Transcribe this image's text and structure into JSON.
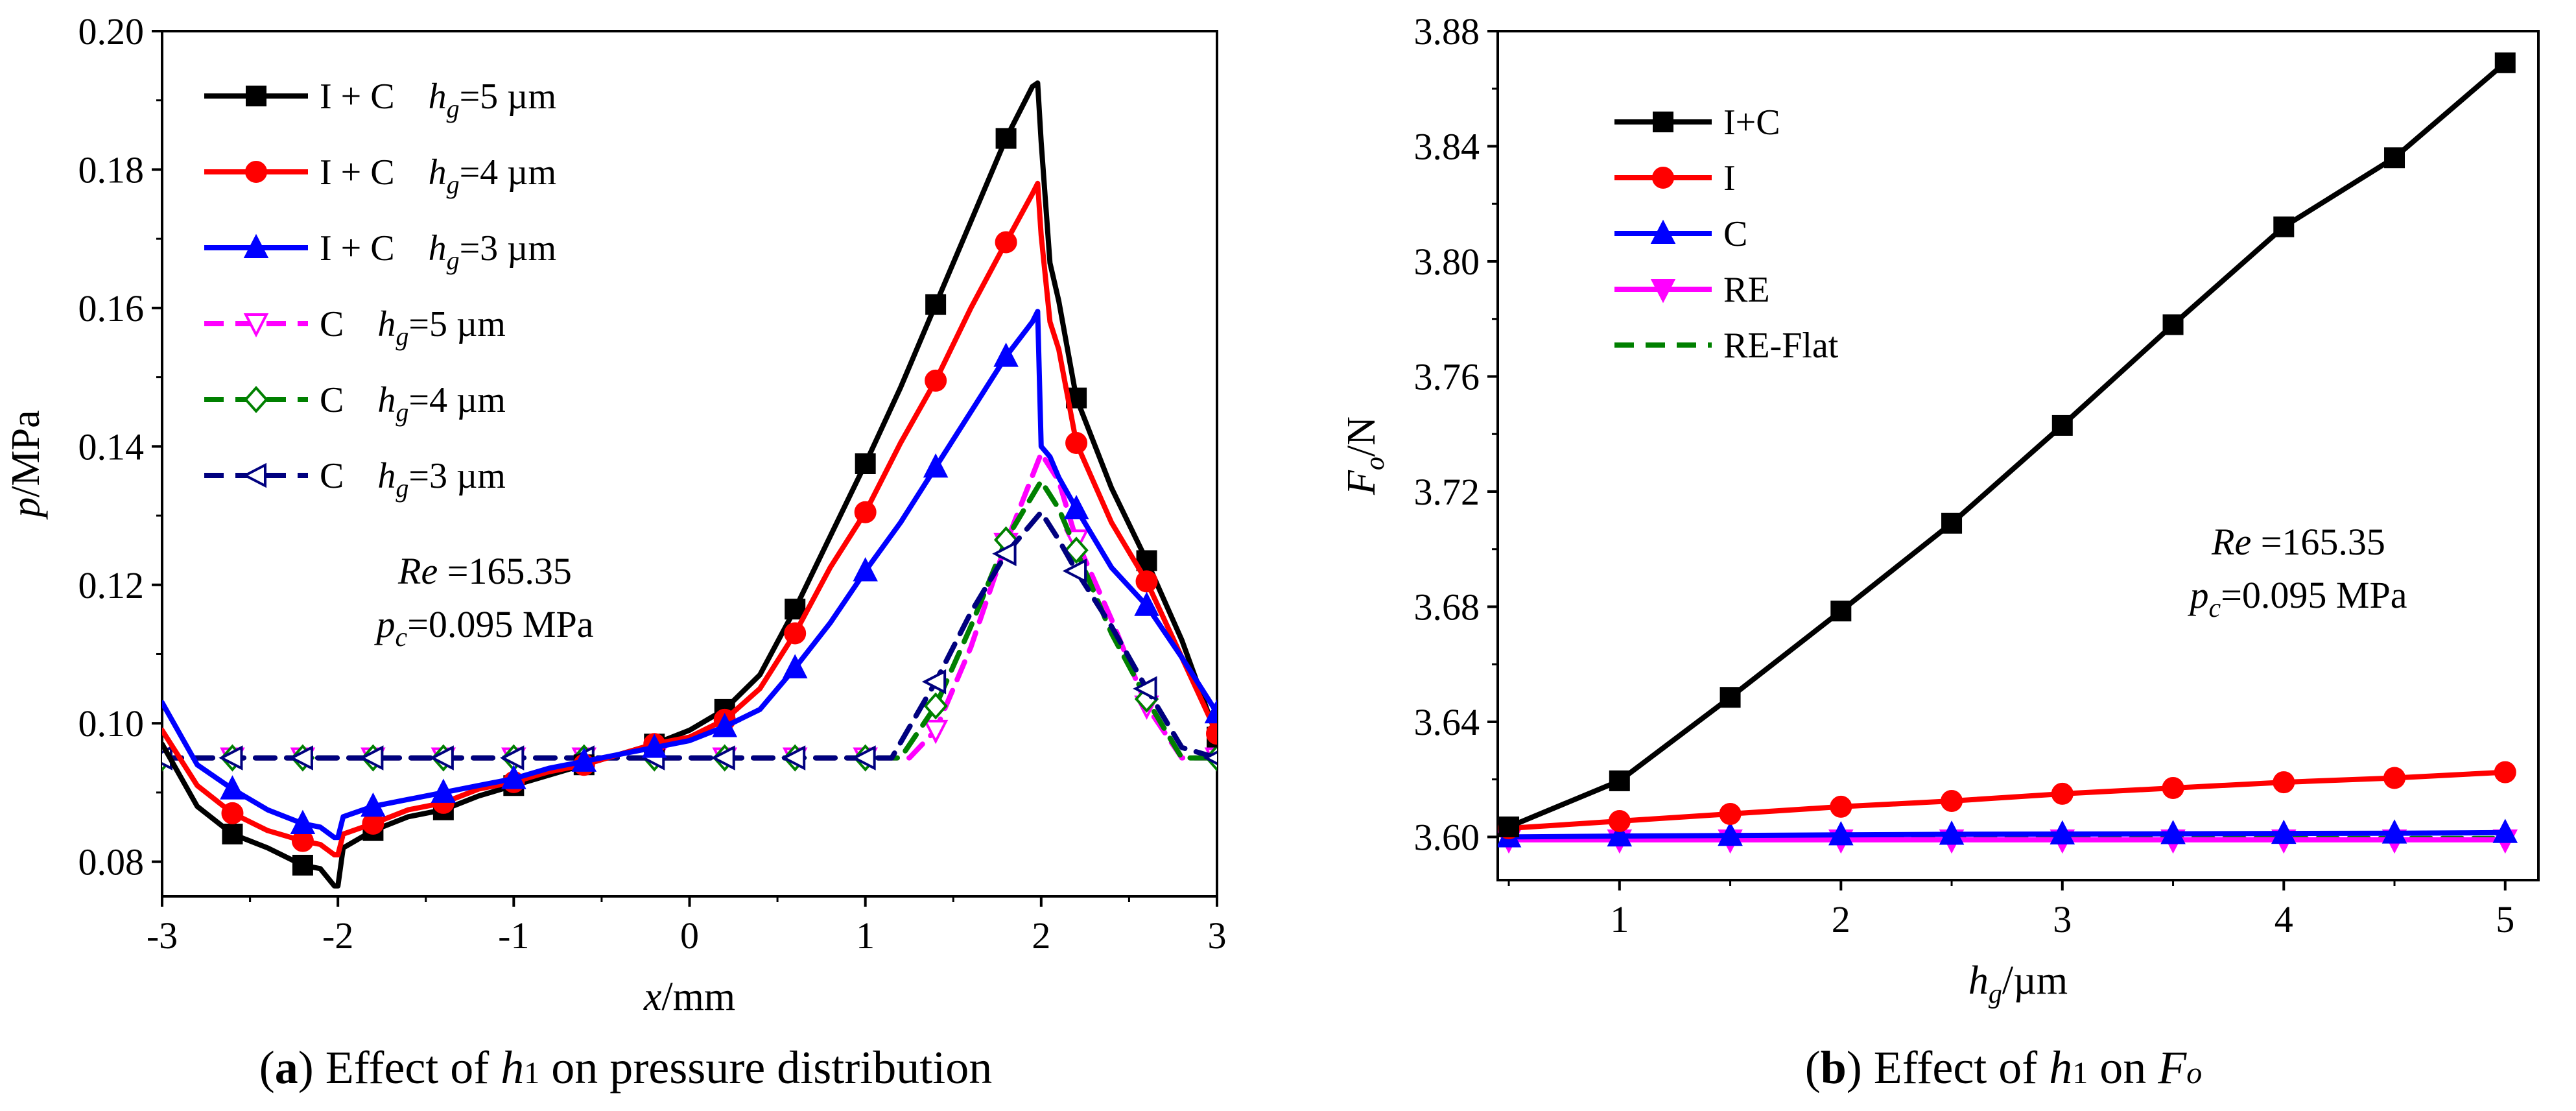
{
  "chart_data": [
    {
      "type": "line",
      "panel": "a",
      "caption": {
        "label": "a",
        "text": "Effect of",
        "symbol": "h",
        "symbol_sub": "1",
        "tail": "on pressure distribution"
      },
      "xlabel": {
        "var": "x",
        "unit": "/mm"
      },
      "ylabel": {
        "var": "p",
        "unit": "/MPa"
      },
      "xlim": [
        -3,
        3
      ],
      "ylim": [
        0.075,
        0.2
      ],
      "xticks": [
        "-3",
        "-2",
        "-1",
        "0",
        "1",
        "2",
        "3"
      ],
      "yticks": [
        "0.08",
        "0.10",
        "0.12",
        "0.14",
        "0.16",
        "0.18",
        "0.20"
      ],
      "annotation": {
        "re_var": "Re",
        "re_value": " =165.35",
        "pc_var": "p",
        "pc_sub": "c",
        "pc_value": "=0.095 MPa"
      },
      "series": [
        {
          "name": "I + C   h_g=5 µm",
          "legend_prefix": "I + C",
          "legend_var": "h",
          "legend_sub": "g",
          "legend_value": "=5 µm",
          "color": "#000000",
          "dash": "solid",
          "marker": "square",
          "marker_fill": "filled",
          "x": [
            -3,
            -2.8,
            -2.6,
            -2.4,
            -2.2,
            -2.1,
            -2.02,
            -2.0,
            -1.97,
            -1.8,
            -1.6,
            -1.4,
            -1.2,
            -1.0,
            -0.8,
            -0.6,
            -0.4,
            -0.2,
            0,
            0.2,
            0.4,
            0.6,
            0.8,
            1.0,
            1.2,
            1.4,
            1.6,
            1.8,
            1.95,
            1.98,
            2.0,
            2.05,
            2.1,
            2.2,
            2.4,
            2.6,
            2.8,
            3.0
          ],
          "y": [
            0.097,
            0.088,
            0.084,
            0.082,
            0.0795,
            0.079,
            0.0765,
            0.0765,
            0.082,
            0.0845,
            0.0865,
            0.0875,
            0.0895,
            0.091,
            0.0925,
            0.094,
            0.0955,
            0.097,
            0.099,
            0.102,
            0.107,
            0.1165,
            0.127,
            0.1375,
            0.1485,
            0.1605,
            0.1725,
            0.1845,
            0.192,
            0.1925,
            0.184,
            0.1665,
            0.161,
            0.147,
            0.134,
            0.1235,
            0.112,
            0.098
          ],
          "marker_x": [
            -2.6,
            -2.2,
            -1.8,
            -1.4,
            -1.0,
            -0.6,
            -0.2,
            0.2,
            0.6,
            1.0,
            1.4,
            1.8,
            2.2,
            2.6,
            3.0
          ]
        },
        {
          "name": "I + C   h_g=4 µm",
          "legend_prefix": "I + C",
          "legend_var": "h",
          "legend_sub": "g",
          "legend_value": "=4 µm",
          "color": "#ff0000",
          "dash": "solid",
          "marker": "circle",
          "marker_fill": "filled",
          "x": [
            -3,
            -2.8,
            -2.6,
            -2.4,
            -2.2,
            -2.1,
            -2.02,
            -2.0,
            -1.97,
            -1.8,
            -1.6,
            -1.4,
            -1.2,
            -1.0,
            -0.8,
            -0.6,
            -0.4,
            -0.2,
            0,
            0.2,
            0.4,
            0.6,
            0.8,
            1.0,
            1.2,
            1.4,
            1.6,
            1.8,
            1.95,
            1.98,
            2.0,
            2.05,
            2.1,
            2.2,
            2.4,
            2.6,
            2.8,
            3.0
          ],
          "y": [
            0.099,
            0.091,
            0.087,
            0.0845,
            0.083,
            0.0825,
            0.081,
            0.081,
            0.084,
            0.0855,
            0.0875,
            0.0885,
            0.0905,
            0.0915,
            0.093,
            0.094,
            0.0955,
            0.097,
            0.098,
            0.1005,
            0.105,
            0.113,
            0.1225,
            0.1305,
            0.1405,
            0.1495,
            0.16,
            0.1695,
            0.1765,
            0.178,
            0.1705,
            0.158,
            0.154,
            0.1405,
            0.129,
            0.1205,
            0.1095,
            0.0985
          ],
          "marker_x": [
            -2.6,
            -2.2,
            -1.8,
            -1.4,
            -1.0,
            -0.6,
            -0.2,
            0.2,
            0.6,
            1.0,
            1.4,
            1.8,
            2.2,
            2.6,
            3.0
          ]
        },
        {
          "name": "I + C   h_g=3 µm",
          "legend_prefix": "I + C",
          "legend_var": "h",
          "legend_sub": "g",
          "legend_value": "=3 µm",
          "color": "#0000ff",
          "dash": "solid",
          "marker": "triangle-up",
          "marker_fill": "filled",
          "x": [
            -3,
            -2.8,
            -2.6,
            -2.4,
            -2.2,
            -2.1,
            -2.02,
            -2.0,
            -1.97,
            -1.8,
            -1.6,
            -1.4,
            -1.2,
            -1.0,
            -0.8,
            -0.6,
            -0.4,
            -0.2,
            0,
            0.2,
            0.4,
            0.6,
            0.8,
            1.0,
            1.2,
            1.4,
            1.6,
            1.8,
            1.95,
            1.98,
            2.0,
            2.05,
            2.1,
            2.2,
            2.4,
            2.6,
            2.8,
            3.0
          ],
          "y": [
            0.103,
            0.094,
            0.0905,
            0.0875,
            0.0855,
            0.085,
            0.0835,
            0.0835,
            0.0865,
            0.088,
            0.089,
            0.09,
            0.091,
            0.092,
            0.0935,
            0.0945,
            0.0955,
            0.0965,
            0.0975,
            0.0995,
            0.102,
            0.108,
            0.1145,
            0.122,
            0.129,
            0.137,
            0.145,
            0.153,
            0.158,
            0.1595,
            0.14,
            0.1385,
            0.1355,
            0.131,
            0.1225,
            0.117,
            0.1095,
            0.1015
          ],
          "marker_x": [
            -2.6,
            -2.2,
            -1.8,
            -1.4,
            -1.0,
            -0.6,
            -0.2,
            0.2,
            0.6,
            1.0,
            1.4,
            1.8,
            2.2,
            2.6,
            3.0
          ]
        },
        {
          "name": "C   h_g=5 µm",
          "legend_prefix": "C",
          "legend_var": "h",
          "legend_sub": "g",
          "legend_value": "=5 µm",
          "color": "#ff00ff",
          "dash": "dashed",
          "marker": "triangle-down",
          "marker_fill": "open",
          "x": [
            -3,
            -2.6,
            -2.2,
            -1.8,
            -1.4,
            -1.0,
            -0.6,
            -0.2,
            0.2,
            0.6,
            1.0,
            1.25,
            1.4,
            1.6,
            1.8,
            2.0,
            2.1,
            2.2,
            2.4,
            2.6,
            2.8,
            3.0
          ],
          "y": [
            0.095,
            0.095,
            0.095,
            0.095,
            0.095,
            0.095,
            0.095,
            0.095,
            0.095,
            0.095,
            0.095,
            0.095,
            0.099,
            0.111,
            0.126,
            0.139,
            0.135,
            0.1265,
            0.115,
            0.1025,
            0.095,
            0.095
          ],
          "marker_x": [
            -3.0,
            -2.6,
            -2.2,
            -1.8,
            -1.4,
            -1.0,
            -0.6,
            -0.2,
            0.2,
            0.6,
            1.0,
            1.4,
            1.8,
            2.2,
            2.6,
            3.0
          ]
        },
        {
          "name": "C   h_g=4 µm",
          "legend_prefix": "C",
          "legend_var": "h",
          "legend_sub": "g",
          "legend_value": "=4 µm",
          "color": "#008000",
          "dash": "dashed",
          "marker": "diamond",
          "marker_fill": "open",
          "x": [
            -3,
            -2.6,
            -2.2,
            -1.8,
            -1.4,
            -1.0,
            -0.6,
            -0.2,
            0.2,
            0.6,
            1.0,
            1.2,
            1.4,
            1.6,
            1.8,
            2.0,
            2.1,
            2.2,
            2.4,
            2.6,
            2.8,
            3.0
          ],
          "y": [
            0.095,
            0.095,
            0.095,
            0.095,
            0.095,
            0.095,
            0.095,
            0.095,
            0.095,
            0.095,
            0.095,
            0.095,
            0.1025,
            0.114,
            0.1265,
            0.135,
            0.131,
            0.125,
            0.113,
            0.1035,
            0.095,
            0.095
          ],
          "marker_x": [
            -3.0,
            -2.6,
            -2.2,
            -1.8,
            -1.4,
            -1.0,
            -0.6,
            -0.2,
            0.2,
            0.6,
            1.0,
            1.4,
            1.8,
            2.2,
            2.6,
            3.0
          ]
        },
        {
          "name": "C   h_g=3 µm",
          "legend_prefix": "C",
          "legend_var": "h",
          "legend_sub": "g",
          "legend_value": "=3 µm",
          "color": "#00007f",
          "dash": "dashed",
          "marker": "triangle-left",
          "marker_fill": "open",
          "x": [
            -3,
            -2.6,
            -2.2,
            -1.8,
            -1.4,
            -1.0,
            -0.6,
            -0.2,
            0.2,
            0.6,
            1.0,
            1.15,
            1.4,
            1.6,
            1.8,
            2.0,
            2.1,
            2.2,
            2.4,
            2.6,
            2.8,
            3.0
          ],
          "y": [
            0.095,
            0.095,
            0.095,
            0.095,
            0.095,
            0.095,
            0.095,
            0.095,
            0.095,
            0.095,
            0.095,
            0.095,
            0.106,
            0.116,
            0.1245,
            0.1305,
            0.1265,
            0.122,
            0.114,
            0.105,
            0.0965,
            0.095
          ],
          "marker_x": [
            -3.0,
            -2.6,
            -2.2,
            -1.8,
            -1.4,
            -1.0,
            -0.6,
            -0.2,
            0.2,
            0.6,
            1.0,
            1.4,
            1.8,
            2.2,
            2.6,
            3.0
          ]
        }
      ]
    },
    {
      "type": "line",
      "panel": "b",
      "caption": {
        "label": "b",
        "text": "Effect of",
        "symbol": "h",
        "symbol_sub": "1",
        "tail": "on",
        "tail_symbol": "F",
        "tail_symbol_sub": "o"
      },
      "xlabel": {
        "var": "h",
        "sub": "g",
        "unit": "/µm"
      },
      "ylabel": {
        "var": "F",
        "sub": "o",
        "unit": "/N"
      },
      "xlim": [
        0.45,
        5.15
      ],
      "ylim": [
        3.585,
        3.88
      ],
      "xticks": [
        "1",
        "2",
        "3",
        "4",
        "5"
      ],
      "yticks": [
        "3.60",
        "3.64",
        "3.68",
        "3.72",
        "3.76",
        "3.80",
        "3.84",
        "3.88"
      ],
      "annotation": {
        "re_var": "Re",
        "re_value": " =165.35",
        "pc_var": "p",
        "pc_sub": "c",
        "pc_value": "=0.095 MPa"
      },
      "series": [
        {
          "name": "I+C",
          "color": "#000000",
          "dash": "solid",
          "marker": "square",
          "marker_fill": "filled",
          "x": [
            0.5,
            1.0,
            1.5,
            2.0,
            2.5,
            3.0,
            3.5,
            4.0,
            4.5,
            5.0
          ],
          "y": [
            3.6035,
            3.6195,
            3.6485,
            3.6785,
            3.709,
            3.743,
            3.778,
            3.812,
            3.836,
            3.869
          ]
        },
        {
          "name": "I",
          "color": "#ff0000",
          "dash": "solid",
          "marker": "circle",
          "marker_fill": "filled",
          "x": [
            0.5,
            1.0,
            1.5,
            2.0,
            2.5,
            3.0,
            3.5,
            4.0,
            4.5,
            5.0
          ],
          "y": [
            3.603,
            3.6055,
            3.608,
            3.6105,
            3.6125,
            3.615,
            3.617,
            3.619,
            3.6205,
            3.6225
          ]
        },
        {
          "name": "C",
          "color": "#0000ff",
          "dash": "solid",
          "marker": "triangle-up",
          "marker_fill": "filled",
          "x": [
            0.5,
            1.0,
            1.5,
            2.0,
            2.5,
            3.0,
            3.5,
            4.0,
            4.5,
            5.0
          ],
          "y": [
            3.6,
            3.6003,
            3.6005,
            3.6007,
            3.6009,
            3.601,
            3.6011,
            3.6012,
            3.6013,
            3.6015
          ]
        },
        {
          "name": "RE",
          "color": "#ff00ff",
          "dash": "solid",
          "marker": "triangle-down",
          "marker_fill": "filled",
          "x": [
            0.5,
            1.0,
            1.5,
            2.0,
            2.5,
            3.0,
            3.5,
            4.0,
            4.5,
            5.0
          ],
          "y": [
            3.599,
            3.599,
            3.599,
            3.599,
            3.599,
            3.599,
            3.599,
            3.599,
            3.599,
            3.599
          ]
        },
        {
          "name": "RE-Flat",
          "color": "#008000",
          "dash": "dashed",
          "marker": "none",
          "marker_fill": "none",
          "x": [
            0.5,
            1.0,
            1.5,
            2.0,
            2.5,
            3.0,
            3.5,
            4.0,
            4.5,
            5.0
          ],
          "y": [
            3.5995,
            3.5995,
            3.5995,
            3.5995,
            3.5995,
            3.5995,
            3.5995,
            3.5995,
            3.5995,
            3.5995
          ]
        }
      ]
    }
  ]
}
